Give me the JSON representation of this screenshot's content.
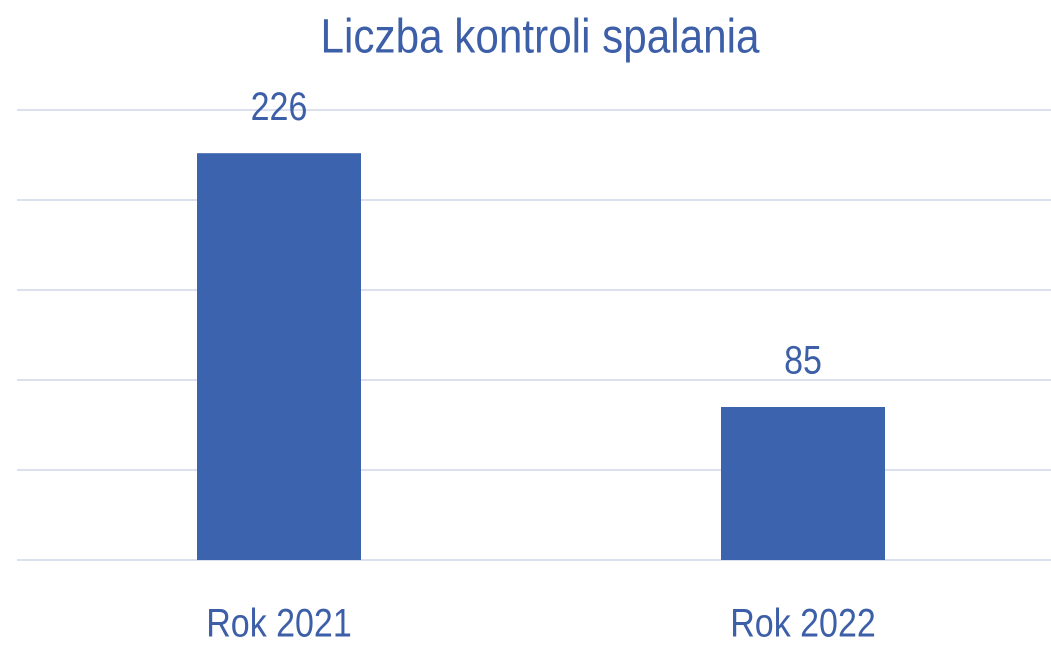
{
  "chart_data": {
    "type": "bar",
    "title": "Liczba kontroli spalania",
    "categories": [
      "Rok 2021",
      "Rok 2022"
    ],
    "values": [
      226,
      85
    ],
    "color": "#3c64ae",
    "ylim": [
      0,
      250
    ],
    "yticks": [
      0,
      50,
      100,
      150,
      200,
      250
    ],
    "grid": true
  }
}
